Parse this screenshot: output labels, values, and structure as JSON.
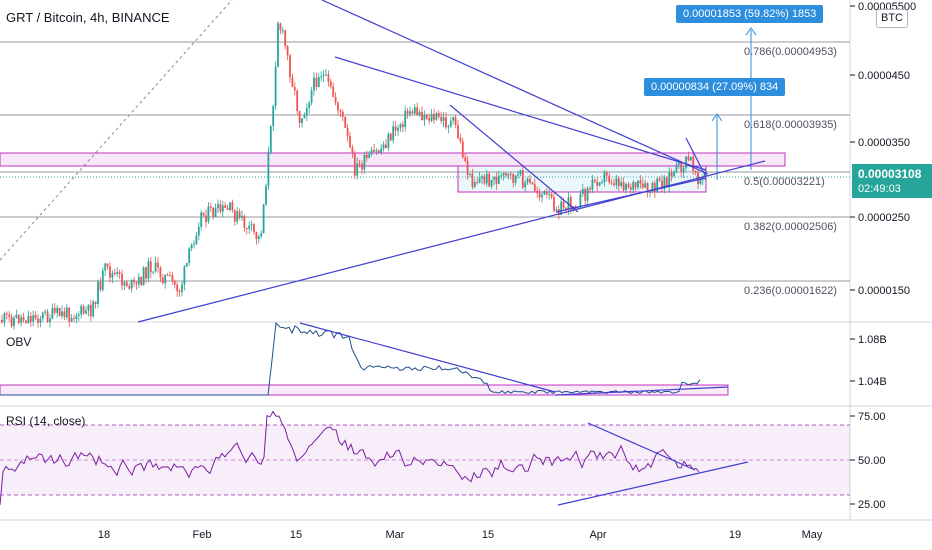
{
  "chart_title": "GRT / Bitcoin, 4h, BINANCE",
  "currency_badge": "BTC",
  "last_price": "0.00003108",
  "countdown": "02:49:03",
  "callouts": {
    "large": "0.00001853 (59.82%) 1853",
    "small": "0.00000834 (27.09%) 834"
  },
  "fib_levels": [
    {
      "label": "0.786(0.00004953)",
      "value": 4.953e-05
    },
    {
      "label": "0.618(0.00003935)",
      "value": 3.935e-05
    },
    {
      "label": "0.5(0.00003221)",
      "value": 3.221e-05
    },
    {
      "label": "0.382(0.00002506)",
      "value": 2.506e-05
    },
    {
      "label": "0.236(0.00001622)",
      "value": 1.622e-05
    }
  ],
  "price_axis": [
    "0.00005500",
    "0.0000450",
    "0.0000350",
    "0.0000250",
    "0.0000150"
  ],
  "obv": {
    "label": "OBV",
    "axis": [
      "1.08B",
      "1.04B"
    ]
  },
  "rsi": {
    "label": "RSI (14, close)",
    "axis": [
      "75.00",
      "50.00",
      "25.00"
    ]
  },
  "time_axis": [
    "18",
    "Feb",
    "15",
    "Mar",
    "15",
    "Apr",
    "19",
    "May"
  ],
  "colors": {
    "up": "#26a69a",
    "down": "#ef5350",
    "trendline": "#3f3fd1",
    "zone": "#c030c0",
    "rsi_line": "#7b1fa2",
    "obv_line": "#1f4e8c",
    "callout": "#2e8ede"
  }
}
